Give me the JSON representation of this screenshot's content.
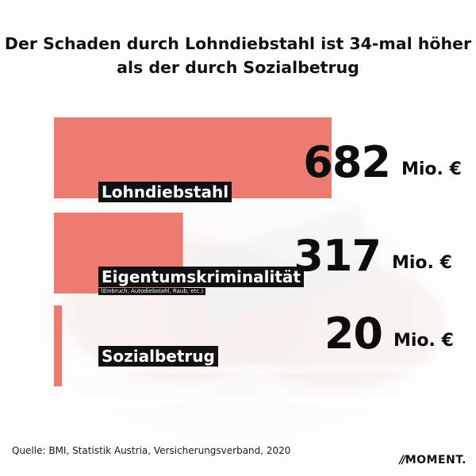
{
  "title": "Der Schaden durch Lohndiebstahl ist 34-mal höher als der durch Sozialbetrug",
  "unit": "Mio. €",
  "colors": {
    "bar": "#ec7b72",
    "label_bg": "#111111",
    "text": "#111111"
  },
  "chart_data": {
    "type": "bar",
    "orientation": "horizontal",
    "categories": [
      "Lohndiebstahl",
      "Eigentumskriminalität",
      "Sozialbetrug"
    ],
    "category_notes": [
      "",
      "(Einbruch, Autodiebstahl, Raub, etc.)",
      ""
    ],
    "values": [
      682,
      317,
      20
    ],
    "value_labels": [
      "682",
      "317",
      "20"
    ],
    "unit": "Mio. €"
  },
  "source": "Quelle: BMI, Statistik Austria, Versicherungsverband, 2020",
  "logo": {
    "mark": "//",
    "text": "MOMENT."
  }
}
